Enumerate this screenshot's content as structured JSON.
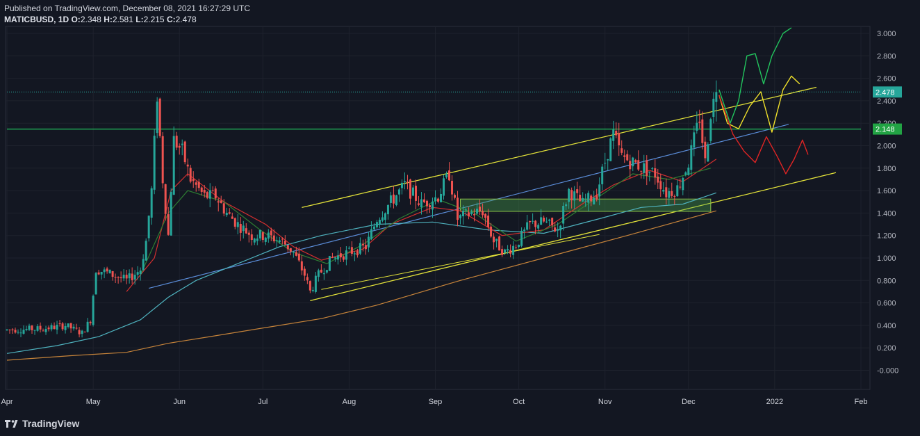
{
  "header": {
    "published": "Published on TradingView.com, December 08, 2021 16:27:29 UTC",
    "symbol": "MATICBUSD, 1D",
    "open_label": "O:",
    "open": "2.348",
    "high_label": "H:",
    "high": "2.581",
    "low_label": "L:",
    "low": "2.215",
    "close_label": "C:",
    "close": "2.478"
  },
  "footer": {
    "brand": "TradingView"
  },
  "colors": {
    "background": "#131722",
    "grid": "#1e222d",
    "up": "#26a69a",
    "down": "#ef5350",
    "yellow": "#e5e43a",
    "blue_line": "#5b8dd9",
    "teal_ma": "#4fb3bf",
    "orange_ma": "#c7843a",
    "red_ma": "#d32f2f",
    "green_ma": "#2e7d32",
    "support_line": "#22c55e",
    "projection_green": "#22c55e",
    "projection_yellow": "#f0e12a",
    "projection_red": "#e02424"
  },
  "chart_data": {
    "type": "candlestick",
    "symbol": "MATICBUSD",
    "interval": "1D",
    "ylim": [
      -0.1,
      3.0
    ],
    "y_ticks": [
      "3.000",
      "2.800",
      "2.600",
      "2.400",
      "2.200",
      "2.000",
      "1.800",
      "1.600",
      "1.400",
      "1.200",
      "1.000",
      "0.800",
      "0.600",
      "0.400",
      "0.200",
      "-0.000"
    ],
    "x_ticks": [
      {
        "label": "Apr",
        "day": -3
      },
      {
        "label": "May",
        "day": 28
      },
      {
        "label": "Jun",
        "day": 59
      },
      {
        "label": "Jul",
        "day": 89
      },
      {
        "label": "Aug",
        "day": 120
      },
      {
        "label": "Sep",
        "day": 151
      },
      {
        "label": "Oct",
        "day": 181
      },
      {
        "label": "Nov",
        "day": 212
      },
      {
        "label": "Dec",
        "day": 242
      },
      {
        "label": "2022",
        "day": 273
      },
      {
        "label": "Feb",
        "day": 304
      }
    ],
    "last_price": {
      "label": "2.478",
      "value": 2.478
    },
    "support_level": {
      "label": "2.148",
      "value": 2.148
    },
    "closes": [
      {
        "day": -2,
        "close": 0.36
      },
      {
        "day": 4,
        "close": 0.38
      },
      {
        "day": 10,
        "close": 0.37
      },
      {
        "day": 16,
        "close": 0.42
      },
      {
        "day": 20,
        "close": 0.33
      },
      {
        "day": 25,
        "close": 0.38
      },
      {
        "day": 27,
        "close": 0.55
      },
      {
        "day": 29,
        "close": 0.9
      },
      {
        "day": 34,
        "close": 0.84
      },
      {
        "day": 39,
        "close": 0.81
      },
      {
        "day": 44,
        "close": 0.9
      },
      {
        "day": 47,
        "close": 1.1
      },
      {
        "day": 50,
        "close": 1.55
      },
      {
        "day": 53,
        "close": 2.0
      },
      {
        "day": 48,
        "close": 1.2
      },
      {
        "day": 50,
        "close": 2.45
      },
      {
        "day": 51,
        "close": 1.8
      },
      {
        "day": 53,
        "close": 1.35
      },
      {
        "day": 55,
        "close": 1.7
      },
      {
        "day": 57,
        "close": 2.1
      },
      {
        "day": 60,
        "close": 1.95
      },
      {
        "day": 63,
        "close": 1.75
      },
      {
        "day": 66,
        "close": 1.65
      },
      {
        "day": 70,
        "close": 1.55
      },
      {
        "day": 74,
        "close": 1.45
      },
      {
        "day": 78,
        "close": 1.35
      },
      {
        "day": 82,
        "close": 1.3
      },
      {
        "day": 86,
        "close": 1.45
      },
      {
        "day": 90,
        "close": 1.2
      },
      {
        "day": 94,
        "close": 1.15
      },
      {
        "day": 98,
        "close": 1.2
      },
      {
        "day": 102,
        "close": 1.05
      },
      {
        "day": 106,
        "close": 0.7
      },
      {
        "day": 109,
        "close": 0.85
      },
      {
        "day": 113,
        "close": 0.95
      },
      {
        "day": 117,
        "close": 1.05
      },
      {
        "day": 121,
        "close": 1.1
      },
      {
        "day": 125,
        "close": 1.1
      },
      {
        "day": 129,
        "close": 1.3
      },
      {
        "day": 133,
        "close": 1.45
      },
      {
        "day": 137,
        "close": 1.55
      },
      {
        "day": 141,
        "close": 1.65
      },
      {
        "day": 145,
        "close": 1.5
      },
      {
        "day": 149,
        "close": 1.45
      },
      {
        "day": 153,
        "close": 1.6
      },
      {
        "day": 156,
        "close": 1.7
      },
      {
        "day": 159,
        "close": 1.35
      },
      {
        "day": 163,
        "close": 1.4
      },
      {
        "day": 167,
        "close": 1.45
      },
      {
        "day": 171,
        "close": 1.25
      },
      {
        "day": 175,
        "close": 1.05
      },
      {
        "day": 179,
        "close": 1.1
      },
      {
        "day": 183,
        "close": 1.3
      },
      {
        "day": 187,
        "close": 1.35
      },
      {
        "day": 191,
        "close": 1.3
      },
      {
        "day": 195,
        "close": 1.25
      },
      {
        "day": 199,
        "close": 1.6
      },
      {
        "day": 203,
        "close": 1.5
      },
      {
        "day": 207,
        "close": 1.55
      },
      {
        "day": 211,
        "close": 1.65
      },
      {
        "day": 214,
        "close": 2.1
      },
      {
        "day": 217,
        "close": 1.9
      },
      {
        "day": 220,
        "close": 1.95
      },
      {
        "day": 224,
        "close": 1.85
      },
      {
        "day": 228,
        "close": 1.8
      },
      {
        "day": 232,
        "close": 1.75
      },
      {
        "day": 236,
        "close": 1.55
      },
      {
        "day": 240,
        "close": 1.6
      },
      {
        "day": 243,
        "close": 1.75
      },
      {
        "day": 246,
        "close": 2.3
      },
      {
        "day": 248,
        "close": 1.85
      },
      {
        "day": 250,
        "close": 2.3
      },
      {
        "day": 252,
        "close": 2.478
      }
    ]
  }
}
